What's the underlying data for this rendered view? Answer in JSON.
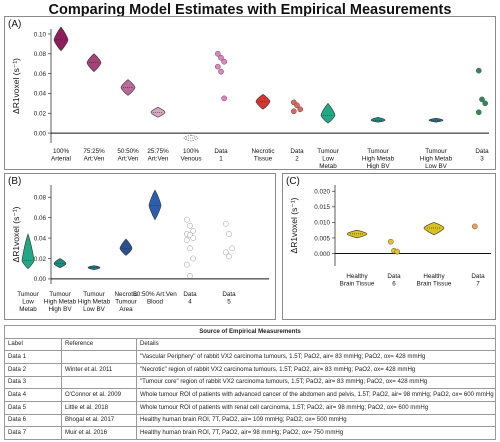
{
  "page_title": "Comparing Model Estimates with Empirical Measurements",
  "colors": {
    "arterial": "#8e1f5a",
    "art75": "#a3437a",
    "art50": "#b86c97",
    "art25": "#d6a8c3",
    "venous": "#ffffff",
    "data1": "#e67fbf",
    "necrotic": "#d6362e",
    "data2": "#e06458",
    "lowmetab": "#22a884",
    "highbv": "#1d8a80",
    "lowbv": "#2a6f8a",
    "data3": "#2e8b57",
    "tumour_area": "#2b4f91",
    "blood": "#2b5fae",
    "data_empty": "#ffffff",
    "healthy": "#d6c11f",
    "data6": "#e6c12a",
    "data7": "#f0a34a"
  },
  "chart_data": [
    {
      "panel": "(A)",
      "type": "violin",
      "ylabel": "ΔR1voxel (s⁻¹)",
      "ylim": [
        -0.01,
        0.105
      ],
      "ticks": [
        0,
        0.02,
        0.04,
        0.06,
        0.08,
        0.1
      ],
      "tick_labels": [
        "0.00",
        "0.02",
        "0.04",
        "0.06",
        "0.08",
        "0.10"
      ],
      "categories": [
        {
          "label": [
            "100%",
            "Arterial"
          ],
          "kind": "violin",
          "center": 0.094,
          "low": 0.083,
          "high": 0.107,
          "color": "arterial"
        },
        {
          "label": [
            "75:25%",
            "Art:Ven"
          ],
          "kind": "violin",
          "center": 0.071,
          "low": 0.062,
          "high": 0.08,
          "color": "art75"
        },
        {
          "label": [
            "50:50%",
            "Art:Ven"
          ],
          "kind": "violin",
          "center": 0.046,
          "low": 0.038,
          "high": 0.054,
          "color": "art50"
        },
        {
          "label": [
            "25:75%",
            "Art:Ven"
          ],
          "kind": "violin",
          "center": 0.021,
          "low": 0.016,
          "high": 0.026,
          "color": "art25"
        },
        {
          "label": [
            "100%",
            "Venous"
          ],
          "kind": "violin",
          "center": -0.005,
          "low": -0.008,
          "high": -0.002,
          "color": "venous"
        },
        {
          "label": [
            "Data",
            "1"
          ],
          "kind": "dots",
          "points": [
            0.08,
            0.076,
            0.072,
            0.067,
            0.062,
            0.035
          ],
          "color": "data1"
        },
        {
          "label": [
            "Necrotic",
            "Tissue"
          ],
          "kind": "violin",
          "center": 0.032,
          "low": 0.024,
          "high": 0.039,
          "color": "necrotic"
        },
        {
          "label": [
            "Data",
            "2"
          ],
          "kind": "dots",
          "points": [
            0.031,
            0.028,
            0.024,
            0.022
          ],
          "color": "data2"
        },
        {
          "label": [
            "Tumour",
            "Low",
            "Metab"
          ],
          "kind": "violin",
          "center": 0.018,
          "low": 0.01,
          "high": 0.03,
          "color": "lowmetab"
        },
        {
          "label": [
            "Tumour",
            "High Metab",
            "High BV"
          ],
          "kind": "violin",
          "center": 0.013,
          "low": 0.011,
          "high": 0.016,
          "color": "highbv"
        },
        {
          "label": [
            "Tumour",
            "High Metab",
            "Low BV"
          ],
          "kind": "violin",
          "center": 0.013,
          "low": 0.011,
          "high": 0.015,
          "color": "lowbv"
        },
        {
          "label": [
            "Data",
            "3"
          ],
          "kind": "dots",
          "points": [
            0.063,
            0.034,
            0.03,
            0.021
          ],
          "color": "data3"
        }
      ]
    },
    {
      "panel": "(B)",
      "type": "violin",
      "ylabel": "ΔR1voxel (s⁻¹)",
      "ylim": [
        -0.005,
        0.092
      ],
      "ticks": [
        0,
        0.02,
        0.04,
        0.06,
        0.08
      ],
      "tick_labels": [
        "0.00",
        "0.02",
        "0.04",
        "0.06",
        "0.08"
      ],
      "categories": [
        {
          "label": [
            "Tumour",
            "Low",
            "Metab"
          ],
          "kind": "violin",
          "center": 0.018,
          "low": 0.01,
          "high": 0.044,
          "color": "lowmetab"
        },
        {
          "label": [
            "Tumour",
            "High Metab",
            "High BV"
          ],
          "kind": "violin",
          "center": 0.015,
          "low": 0.011,
          "high": 0.02,
          "color": "highbv"
        },
        {
          "label": [
            "Tumour",
            "High Metab",
            "Low BV"
          ],
          "kind": "violin",
          "center": 0.011,
          "low": 0.009,
          "high": 0.013,
          "color": "lowbv"
        },
        {
          "label": [
            "Necrotic",
            "Tumour",
            "Area"
          ],
          "kind": "violin",
          "center": 0.03,
          "low": 0.023,
          "high": 0.039,
          "color": "tumour_area"
        },
        {
          "label": [
            "50:50% Art:Ven",
            "Blood"
          ],
          "kind": "violin",
          "center": 0.072,
          "low": 0.058,
          "high": 0.087,
          "color": "blood"
        },
        {
          "label": [
            "Data",
            "4"
          ],
          "kind": "dots",
          "points": [
            0.058,
            0.052,
            0.047,
            0.044,
            0.043,
            0.04,
            0.038,
            0.03,
            0.02,
            0.014,
            0.003
          ],
          "color": "data_empty"
        },
        {
          "label": [
            "Data",
            "5"
          ],
          "kind": "dots",
          "points": [
            0.054,
            0.044,
            0.03,
            0.026,
            0.022
          ],
          "color": "data_empty"
        }
      ]
    },
    {
      "panel": "(C)",
      "type": "violin",
      "ylabel": "ΔR1voxel (s⁻¹)",
      "ylim": [
        -0.004,
        0.022
      ],
      "ticks": [
        0,
        0.005,
        0.01,
        0.015,
        0.02
      ],
      "tick_labels": [
        "0.000",
        "0.005",
        "0.010",
        "0.015",
        "0.020"
      ],
      "categories": [
        {
          "label": [
            "Healthy",
            "Brain Tissue"
          ],
          "kind": "violin",
          "center": 0.0063,
          "low": 0.005,
          "high": 0.0075,
          "color": "healthy"
        },
        {
          "label": [
            "Data",
            "6"
          ],
          "kind": "dots",
          "points": [
            0.0038,
            0.0009,
            0.0006
          ],
          "color": "data6"
        },
        {
          "label": [
            "Healthy",
            "Brain Tissue"
          ],
          "kind": "violin",
          "center": 0.0082,
          "low": 0.006,
          "high": 0.01,
          "color": "healthy"
        },
        {
          "label": [
            "Data",
            "7"
          ],
          "kind": "dots",
          "points": [
            0.0087
          ],
          "color": "data7"
        }
      ]
    }
  ],
  "table": {
    "caption": "Source of Empirical Measurements",
    "headers": [
      "Label",
      "Reference",
      "Details"
    ],
    "rows": [
      [
        "Data 1",
        "",
        "\"Vascular Periphery\" of rabbit VX2 carcinoma tumours, 1.5T; PaO2, air= 83 mmHg; PaO2, ox= 428 mmHg"
      ],
      [
        "Data 2",
        "Winter et al. 2011",
        "\"Necrotic\" region of rabbit VX2 carcinoma tumours, 1.5T; PaO2, air= 83 mmHg; PaO2, ox= 428 mmHg"
      ],
      [
        "Data 3",
        "",
        "\"Tumour core\" region of rabbit VX2 carcinoma tumours, 1.5T; PaO2, air= 83 mmHg; PaO2, ox= 428 mmHg"
      ],
      [
        "Data 4",
        "O'Connor et al. 2009",
        "Whole tumour ROI of patients with advanced cancer of the abdomen and pelvis, 1.5T; PaO2, air= 98 mmHg; PaO2, ox= 600 mmHg"
      ],
      [
        "Data 5",
        "Little et al. 2018",
        "Whole tumour ROI of patients with renal cell carcinoma, 1.5T; PaO2, air= 98 mmHg; PaO2, ox= 600 mmHg"
      ],
      [
        "Data 6",
        "Bhogal et al. 2017",
        "Healthy human brain ROI, 7T, PaO2, air= 109 mmHg; PaO2, ox= 500 mmHg"
      ],
      [
        "Data 7",
        "Muir et al. 2016",
        "Healthy human brain ROI, 7T, PaO2, air= 98 mmHg; PaO2, ox= 750 mmHg"
      ]
    ]
  }
}
